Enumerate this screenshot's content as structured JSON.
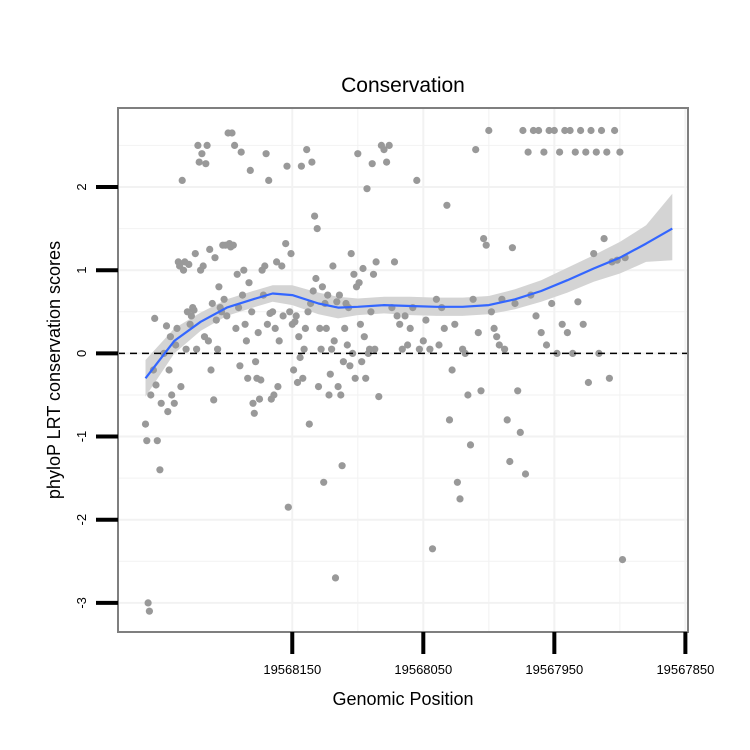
{
  "chart_data": {
    "type": "scatter",
    "title": "Conservation",
    "xlabel": "Genomic Position",
    "ylabel": "phyloP LRT conservation scores",
    "xlim": [
      19568283,
      19567848
    ],
    "ylim": [
      -3.35,
      2.95
    ],
    "x_reversed": true,
    "x_ticks": [
      19568150,
      19568050,
      19567950,
      19567850
    ],
    "x_tick_labels": [
      "19568150",
      "19568050",
      "19567950",
      "19567850"
    ],
    "y_ticks": [
      -3,
      -2,
      -1,
      0,
      1,
      2
    ],
    "y_tick_labels": [
      "-3",
      "-2",
      "-1",
      "0",
      "1",
      "2"
    ],
    "reference_line": {
      "y": 0,
      "style": "dashed"
    },
    "grid": true,
    "colors": {
      "points": "#999999",
      "smooth": "#3366ff",
      "ribbon": "#d4d4d4",
      "panel_border": "#7f7f7f",
      "grid": "#f2f2f2"
    },
    "smooth": {
      "x": [
        19568262,
        19568240,
        19568220,
        19568200,
        19568180,
        19568165,
        19568150,
        19568130,
        19568115,
        19568100,
        19568080,
        19568060,
        19568040,
        19568020,
        19568000,
        19567980,
        19567960,
        19567940,
        19567920,
        19567900,
        19567880,
        19567860
      ],
      "y": [
        -0.3,
        0.15,
        0.38,
        0.55,
        0.65,
        0.72,
        0.7,
        0.6,
        0.55,
        0.56,
        0.58,
        0.57,
        0.56,
        0.56,
        0.58,
        0.65,
        0.75,
        0.88,
        1.02,
        1.15,
        1.32,
        1.5
      ],
      "lower": [
        -0.52,
        0.0,
        0.27,
        0.45,
        0.55,
        0.62,
        0.58,
        0.47,
        0.42,
        0.46,
        0.48,
        0.46,
        0.45,
        0.45,
        0.47,
        0.53,
        0.62,
        0.73,
        0.86,
        0.96,
        1.1,
        1.12
      ],
      "upper": [
        -0.08,
        0.3,
        0.49,
        0.65,
        0.75,
        0.82,
        0.82,
        0.73,
        0.68,
        0.66,
        0.68,
        0.68,
        0.67,
        0.67,
        0.69,
        0.77,
        0.88,
        1.03,
        1.18,
        1.34,
        1.54,
        1.92
      ]
    },
    "points": [
      [
        19568262,
        -0.85
      ],
      [
        19568261,
        -1.05
      ],
      [
        19568260,
        -3.0
      ],
      [
        19568259,
        -3.1
      ],
      [
        19568258,
        -0.5
      ],
      [
        19568256,
        -0.2
      ],
      [
        19568255,
        0.42
      ],
      [
        19568254,
        -0.38
      ],
      [
        19568253,
        -1.05
      ],
      [
        19568251,
        -1.4
      ],
      [
        19568250,
        -0.6
      ],
      [
        19568248,
        0.0
      ],
      [
        19568246,
        0.33
      ],
      [
        19568245,
        -0.7
      ],
      [
        19568244,
        -0.2
      ],
      [
        19568243,
        0.2
      ],
      [
        19568242,
        -0.5
      ],
      [
        19568240,
        -0.6
      ],
      [
        19568239,
        0.1
      ],
      [
        19568238,
        0.3
      ],
      [
        19568237,
        1.1
      ],
      [
        19568236,
        1.05
      ],
      [
        19568235,
        -0.4
      ],
      [
        19568234,
        2.08
      ],
      [
        19568233,
        1.0
      ],
      [
        19568232,
        1.1
      ],
      [
        19568231,
        0.05
      ],
      [
        19568230,
        0.5
      ],
      [
        19568229,
        1.07
      ],
      [
        19568228,
        0.35
      ],
      [
        19568227,
        0.45
      ],
      [
        19568226,
        0.55
      ],
      [
        19568225,
        0.52
      ],
      [
        19568224,
        1.2
      ],
      [
        19568223,
        0.05
      ],
      [
        19568222,
        2.5
      ],
      [
        19568221,
        2.3
      ],
      [
        19568220,
        1.0
      ],
      [
        19568219,
        2.4
      ],
      [
        19568218,
        1.05
      ],
      [
        19568217,
        0.2
      ],
      [
        19568216,
        2.28
      ],
      [
        19568215,
        2.5
      ],
      [
        19568214,
        0.15
      ],
      [
        19568213,
        1.25
      ],
      [
        19568212,
        -0.2
      ],
      [
        19568211,
        0.6
      ],
      [
        19568210,
        -0.56
      ],
      [
        19568209,
        1.15
      ],
      [
        19568208,
        0.4
      ],
      [
        19568207,
        0.05
      ],
      [
        19568206,
        0.8
      ],
      [
        19568205,
        0.55
      ],
      [
        19568204,
        0.5
      ],
      [
        19568203,
        1.3
      ],
      [
        19568202,
        0.65
      ],
      [
        19568201,
        1.3
      ],
      [
        19568200,
        0.45
      ],
      [
        19568199,
        2.65
      ],
      [
        19568198,
        1.32
      ],
      [
        19568197,
        1.28
      ],
      [
        19568196,
        2.65
      ],
      [
        19568195,
        1.3
      ],
      [
        19568194,
        2.5
      ],
      [
        19568193,
        0.3
      ],
      [
        19568192,
        0.95
      ],
      [
        19568191,
        0.55
      ],
      [
        19568190,
        -0.15
      ],
      [
        19568189,
        2.42
      ],
      [
        19568188,
        0.7
      ],
      [
        19568187,
        1.0
      ],
      [
        19568186,
        0.35
      ],
      [
        19568185,
        0.15
      ],
      [
        19568184,
        -0.3
      ],
      [
        19568183,
        0.85
      ],
      [
        19568182,
        2.2
      ],
      [
        19568181,
        0.5
      ],
      [
        19568180,
        -0.6
      ],
      [
        19568179,
        -0.72
      ],
      [
        19568178,
        -0.1
      ],
      [
        19568177,
        -0.3
      ],
      [
        19568176,
        0.25
      ],
      [
        19568175,
        -0.55
      ],
      [
        19568174,
        -0.32
      ],
      [
        19568173,
        1.0
      ],
      [
        19568172,
        0.7
      ],
      [
        19568171,
        1.05
      ],
      [
        19568170,
        2.4
      ],
      [
        19568169,
        0.35
      ],
      [
        19568168,
        2.08
      ],
      [
        19568167,
        0.48
      ],
      [
        19568166,
        -0.55
      ],
      [
        19568165,
        0.5
      ],
      [
        19568164,
        -0.5
      ],
      [
        19568163,
        0.3
      ],
      [
        19568162,
        1.1
      ],
      [
        19568161,
        -0.4
      ],
      [
        19568160,
        0.15
      ],
      [
        19568158,
        1.05
      ],
      [
        19568157,
        0.45
      ],
      [
        19568155,
        1.32
      ],
      [
        19568154,
        2.25
      ],
      [
        19568153,
        -1.85
      ],
      [
        19568152,
        0.5
      ],
      [
        19568151,
        1.2
      ],
      [
        19568150,
        0.35
      ],
      [
        19568149,
        -0.2
      ],
      [
        19568148,
        0.38
      ],
      [
        19568147,
        0.45
      ],
      [
        19568146,
        -0.35
      ],
      [
        19568145,
        0.2
      ],
      [
        19568144,
        -0.05
      ],
      [
        19568143,
        2.25
      ],
      [
        19568142,
        -0.3
      ],
      [
        19568141,
        0.05
      ],
      [
        19568140,
        0.3
      ],
      [
        19568139,
        2.45
      ],
      [
        19568138,
        0.5
      ],
      [
        19568137,
        -0.85
      ],
      [
        19568136,
        0.6
      ],
      [
        19568135,
        2.3
      ],
      [
        19568134,
        0.75
      ],
      [
        19568133,
        1.65
      ],
      [
        19568132,
        0.9
      ],
      [
        19568131,
        1.5
      ],
      [
        19568130,
        -0.4
      ],
      [
        19568129,
        0.3
      ],
      [
        19568128,
        0.05
      ],
      [
        19568127,
        0.8
      ],
      [
        19568126,
        -1.55
      ],
      [
        19568125,
        0.6
      ],
      [
        19568124,
        0.3
      ],
      [
        19568123,
        0.7
      ],
      [
        19568122,
        -0.5
      ],
      [
        19568121,
        -0.25
      ],
      [
        19568120,
        0.05
      ],
      [
        19568119,
        1.05
      ],
      [
        19568118,
        0.15
      ],
      [
        19568117,
        -2.7
      ],
      [
        19568116,
        0.62
      ],
      [
        19568115,
        -0.4
      ],
      [
        19568114,
        0.7
      ],
      [
        19568113,
        -0.5
      ],
      [
        19568112,
        -1.35
      ],
      [
        19568111,
        -0.1
      ],
      [
        19568110,
        0.3
      ],
      [
        19568109,
        0.6
      ],
      [
        19568108,
        0.1
      ],
      [
        19568107,
        0.55
      ],
      [
        19568106,
        -0.15
      ],
      [
        19568105,
        1.2
      ],
      [
        19568104,
        0.0
      ],
      [
        19568103,
        0.95
      ],
      [
        19568102,
        -0.3
      ],
      [
        19568101,
        0.8
      ],
      [
        19568100,
        2.4
      ],
      [
        19568099,
        0.85
      ],
      [
        19568098,
        0.35
      ],
      [
        19568097,
        -0.1
      ],
      [
        19568096,
        1.02
      ],
      [
        19568095,
        0.2
      ],
      [
        19568094,
        -0.3
      ],
      [
        19568093,
        1.98
      ],
      [
        19568092,
        0.0
      ],
      [
        19568091,
        0.05
      ],
      [
        19568090,
        0.5
      ],
      [
        19568089,
        2.28
      ],
      [
        19568088,
        0.95
      ],
      [
        19568087,
        0.05
      ],
      [
        19568086,
        1.1
      ],
      [
        19568084,
        -0.52
      ],
      [
        19568082,
        2.5
      ],
      [
        19568080,
        2.45
      ],
      [
        19568078,
        2.3
      ],
      [
        19568076,
        2.5
      ],
      [
        19568074,
        0.55
      ],
      [
        19568072,
        1.1
      ],
      [
        19568070,
        0.45
      ],
      [
        19568068,
        0.35
      ],
      [
        19568066,
        0.05
      ],
      [
        19568064,
        0.45
      ],
      [
        19568062,
        0.1
      ],
      [
        19568060,
        0.3
      ],
      [
        19568058,
        0.55
      ],
      [
        19568055,
        2.08
      ],
      [
        19568053,
        0.05
      ],
      [
        19568050,
        0.15
      ],
      [
        19568048,
        0.4
      ],
      [
        19568045,
        0.05
      ],
      [
        19568043,
        -2.35
      ],
      [
        19568040,
        0.65
      ],
      [
        19568038,
        0.1
      ],
      [
        19568036,
        0.55
      ],
      [
        19568034,
        0.3
      ],
      [
        19568032,
        1.78
      ],
      [
        19568030,
        -0.8
      ],
      [
        19568028,
        -0.2
      ],
      [
        19568026,
        0.35
      ],
      [
        19568024,
        -1.55
      ],
      [
        19568022,
        -1.75
      ],
      [
        19568020,
        0.05
      ],
      [
        19568018,
        0.0
      ],
      [
        19568016,
        -0.5
      ],
      [
        19568014,
        -1.1
      ],
      [
        19568012,
        0.65
      ],
      [
        19568010,
        2.45
      ],
      [
        19568008,
        0.25
      ],
      [
        19568006,
        -0.45
      ],
      [
        19568004,
        1.38
      ],
      [
        19568002,
        1.3
      ],
      [
        19568000,
        2.68
      ],
      [
        19567998,
        0.5
      ],
      [
        19567996,
        0.3
      ],
      [
        19567994,
        0.2
      ],
      [
        19567992,
        0.1
      ],
      [
        19567990,
        0.65
      ],
      [
        19567988,
        0.05
      ],
      [
        19567986,
        -0.8
      ],
      [
        19567984,
        -1.3
      ],
      [
        19567982,
        1.27
      ],
      [
        19567980,
        0.6
      ],
      [
        19567978,
        -0.45
      ],
      [
        19567976,
        -0.95
      ],
      [
        19567974,
        2.68
      ],
      [
        19567972,
        -1.45
      ],
      [
        19567970,
        2.42
      ],
      [
        19567968,
        0.7
      ],
      [
        19567966,
        2.68
      ],
      [
        19567964,
        0.45
      ],
      [
        19567962,
        2.68
      ],
      [
        19567960,
        0.25
      ],
      [
        19567958,
        2.42
      ],
      [
        19567956,
        0.1
      ],
      [
        19567954,
        2.68
      ],
      [
        19567952,
        0.6
      ],
      [
        19567950,
        2.68
      ],
      [
        19567948,
        0.0
      ],
      [
        19567946,
        2.42
      ],
      [
        19567944,
        0.35
      ],
      [
        19567942,
        2.68
      ],
      [
        19567940,
        0.25
      ],
      [
        19567938,
        2.68
      ],
      [
        19567936,
        0.0
      ],
      [
        19567934,
        2.42
      ],
      [
        19567932,
        0.62
      ],
      [
        19567930,
        2.68
      ],
      [
        19567928,
        0.35
      ],
      [
        19567926,
        2.42
      ],
      [
        19567924,
        -0.35
      ],
      [
        19567922,
        2.68
      ],
      [
        19567920,
        1.2
      ],
      [
        19567918,
        2.42
      ],
      [
        19567916,
        0.0
      ],
      [
        19567914,
        2.68
      ],
      [
        19567912,
        1.38
      ],
      [
        19567910,
        2.42
      ],
      [
        19567908,
        -0.3
      ],
      [
        19567906,
        1.1
      ],
      [
        19567904,
        2.68
      ],
      [
        19567902,
        1.12
      ],
      [
        19567900,
        2.42
      ],
      [
        19567898,
        -2.48
      ],
      [
        19567896,
        1.15
      ]
    ]
  }
}
